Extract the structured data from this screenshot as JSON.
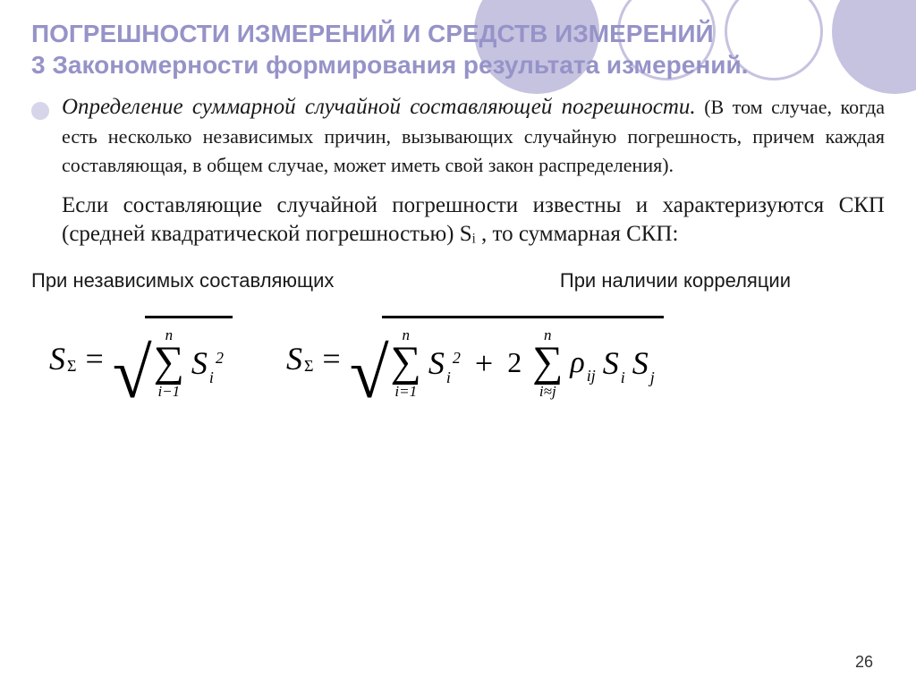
{
  "title": {
    "line1": "ПОГРЕШНОСТИ ИЗМЕРЕНИЙ И СРЕДСТВ ИЗМЕРЕНИЙ",
    "line2": "3 Закономерности формирования результата измерений."
  },
  "paragraph1": {
    "lead_italic": "Определение суммарной случайной составляющей погрешности.",
    "rest": " (В том случае, когда есть несколько независимых причин, вызывающих случайную погрешность, причем каждая составляющая, в общем случае, может иметь свой закон распределения)."
  },
  "paragraph2": "Если составляющие случайной погрешности известны и характеризуются СКП (средней квадратической погрешностью) Sᵢ , то суммарная СКП:",
  "formula_labels": {
    "left": "При независимых составляющих",
    "right": "При наличии корреляции"
  },
  "formulas": {
    "f1": {
      "lhs": "S",
      "lhs_sub": "Σ",
      "sum_top": "n",
      "sum_bot": "i−1",
      "term_base": "S",
      "term_sub": "i",
      "term_sup": "2"
    },
    "f2": {
      "lhs": "S",
      "lhs_sub": "Σ",
      "sum1_top": "n",
      "sum1_bot": "i=1",
      "t1_base": "S",
      "t1_sub": "i",
      "t1_sup": "2",
      "coef": "2",
      "sum2_top": "n",
      "sum2_bot": "i≈j",
      "rho": "ρ",
      "rho_sub": "ij",
      "s1": "S",
      "s1_sub": "i",
      "s2": "S",
      "s2_sub": "j"
    }
  },
  "page_number": "26",
  "colors": {
    "title": "#9693c8",
    "circle_fill": "#c5c3e0",
    "text": "#1a1a1a",
    "bg": "#ffffff"
  },
  "fonts": {
    "title_family": "Arial",
    "title_size_pt": 21,
    "body_family": "Times New Roman",
    "body_size_pt": 19,
    "formula_size_pt": 27
  }
}
